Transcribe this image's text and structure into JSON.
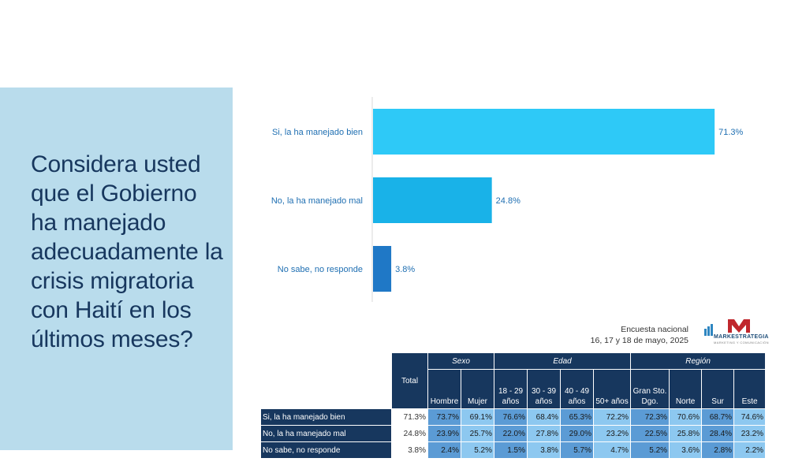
{
  "question": "Considera usted que el Gobierno ha manejado adecuadamente la crisis migratoria con Haití en los últimos meses?",
  "chart_data": {
    "type": "bar",
    "orientation": "horizontal",
    "categories": [
      "Si, la ha manejado bien",
      "No, la ha manejado mal",
      "No sabe, no responde"
    ],
    "values": [
      71.3,
      24.8,
      3.8
    ],
    "value_labels": [
      "71.3%",
      "24.8%",
      "3.8%"
    ],
    "colors": [
      "#2ec9f7",
      "#19b2e8",
      "#1f78c6"
    ],
    "xlim": [
      0,
      80
    ],
    "title": "",
    "xlabel": "",
    "ylabel": ""
  },
  "survey": {
    "line1": "Encuesta nacional",
    "line2": "16, 17 y 18 de mayo, 2025"
  },
  "logo": {
    "name": "MARKESTRATEGIA",
    "tagline": "MARKETING Y COMUNICACIÓN"
  },
  "table": {
    "total_label": "Total",
    "groups": [
      "Sexo",
      "Edad",
      "Región"
    ],
    "subheaders": [
      "Hombre",
      "Mujer",
      "18 - 29 años",
      "30 - 39 años",
      "40 - 49 años",
      "50+ años",
      "Gran Sto. Dgo.",
      "Norte",
      "Sur",
      "Este"
    ],
    "rows": [
      {
        "label": "Si, la ha manejado bien",
        "total": "71.3%",
        "values": [
          "73.7%",
          "69.1%",
          "76.6%",
          "68.4%",
          "65.3%",
          "72.2%",
          "72.3%",
          "70.6%",
          "68.7%",
          "74.6%"
        ]
      },
      {
        "label": "No, la ha manejado mal",
        "total": "24.8%",
        "values": [
          "23.9%",
          "25.7%",
          "22.0%",
          "27.8%",
          "29.0%",
          "23.2%",
          "22.5%",
          "25.8%",
          "28.4%",
          "23.2%"
        ]
      },
      {
        "label": "No sabe, no responde",
        "total": "3.8%",
        "values": [
          "2.4%",
          "5.2%",
          "1.5%",
          "3.8%",
          "5.7%",
          "4.7%",
          "5.2%",
          "3.6%",
          "2.8%",
          "2.2%"
        ]
      }
    ]
  }
}
